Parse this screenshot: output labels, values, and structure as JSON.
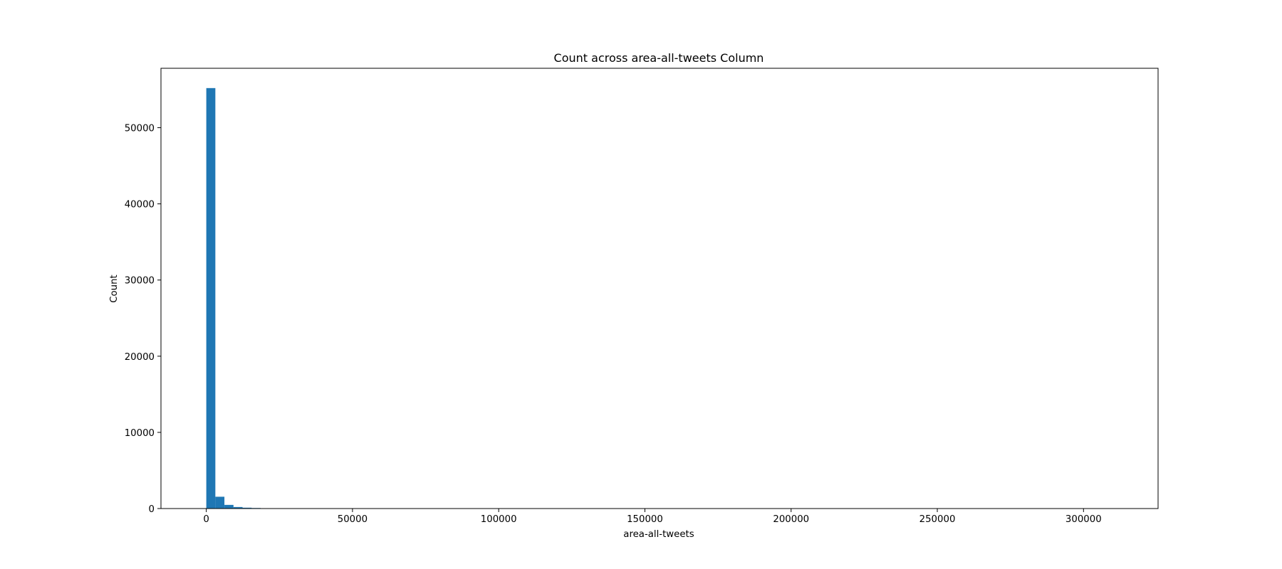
{
  "chart_data": {
    "type": "bar",
    "title": "Count across area-all-tweets Column",
    "xlabel": "area-all-tweets",
    "ylabel": "Count",
    "xlim": [
      -15500,
      325500
    ],
    "ylim": [
      0,
      57800
    ],
    "xticks": [
      0,
      50000,
      100000,
      150000,
      200000,
      250000,
      300000
    ],
    "xtick_labels": [
      "0",
      "50000",
      "100000",
      "150000",
      "200000",
      "250000",
      "300000"
    ],
    "yticks": [
      0,
      10000,
      20000,
      30000,
      40000,
      50000
    ],
    "ytick_labels": [
      "0",
      "10000",
      "20000",
      "30000",
      "40000",
      "50000"
    ],
    "bin_width": 3100,
    "bins": [
      {
        "x0": 0,
        "x1": 3100,
        "count": 55200
      },
      {
        "x0": 3100,
        "x1": 6200,
        "count": 1550
      },
      {
        "x0": 6200,
        "x1": 9300,
        "count": 480
      },
      {
        "x0": 9300,
        "x1": 12400,
        "count": 200
      },
      {
        "x0": 12400,
        "x1": 15500,
        "count": 110
      },
      {
        "x0": 15500,
        "x1": 18600,
        "count": 70
      },
      {
        "x0": 18600,
        "x1": 21700,
        "count": 45
      },
      {
        "x0": 21700,
        "x1": 24800,
        "count": 25
      },
      {
        "x0": 24800,
        "x1": 27900,
        "count": 15
      },
      {
        "x0": 27900,
        "x1": 31000,
        "count": 10
      }
    ],
    "bar_color": "#1f77b4",
    "grid": false,
    "legend": "none"
  }
}
